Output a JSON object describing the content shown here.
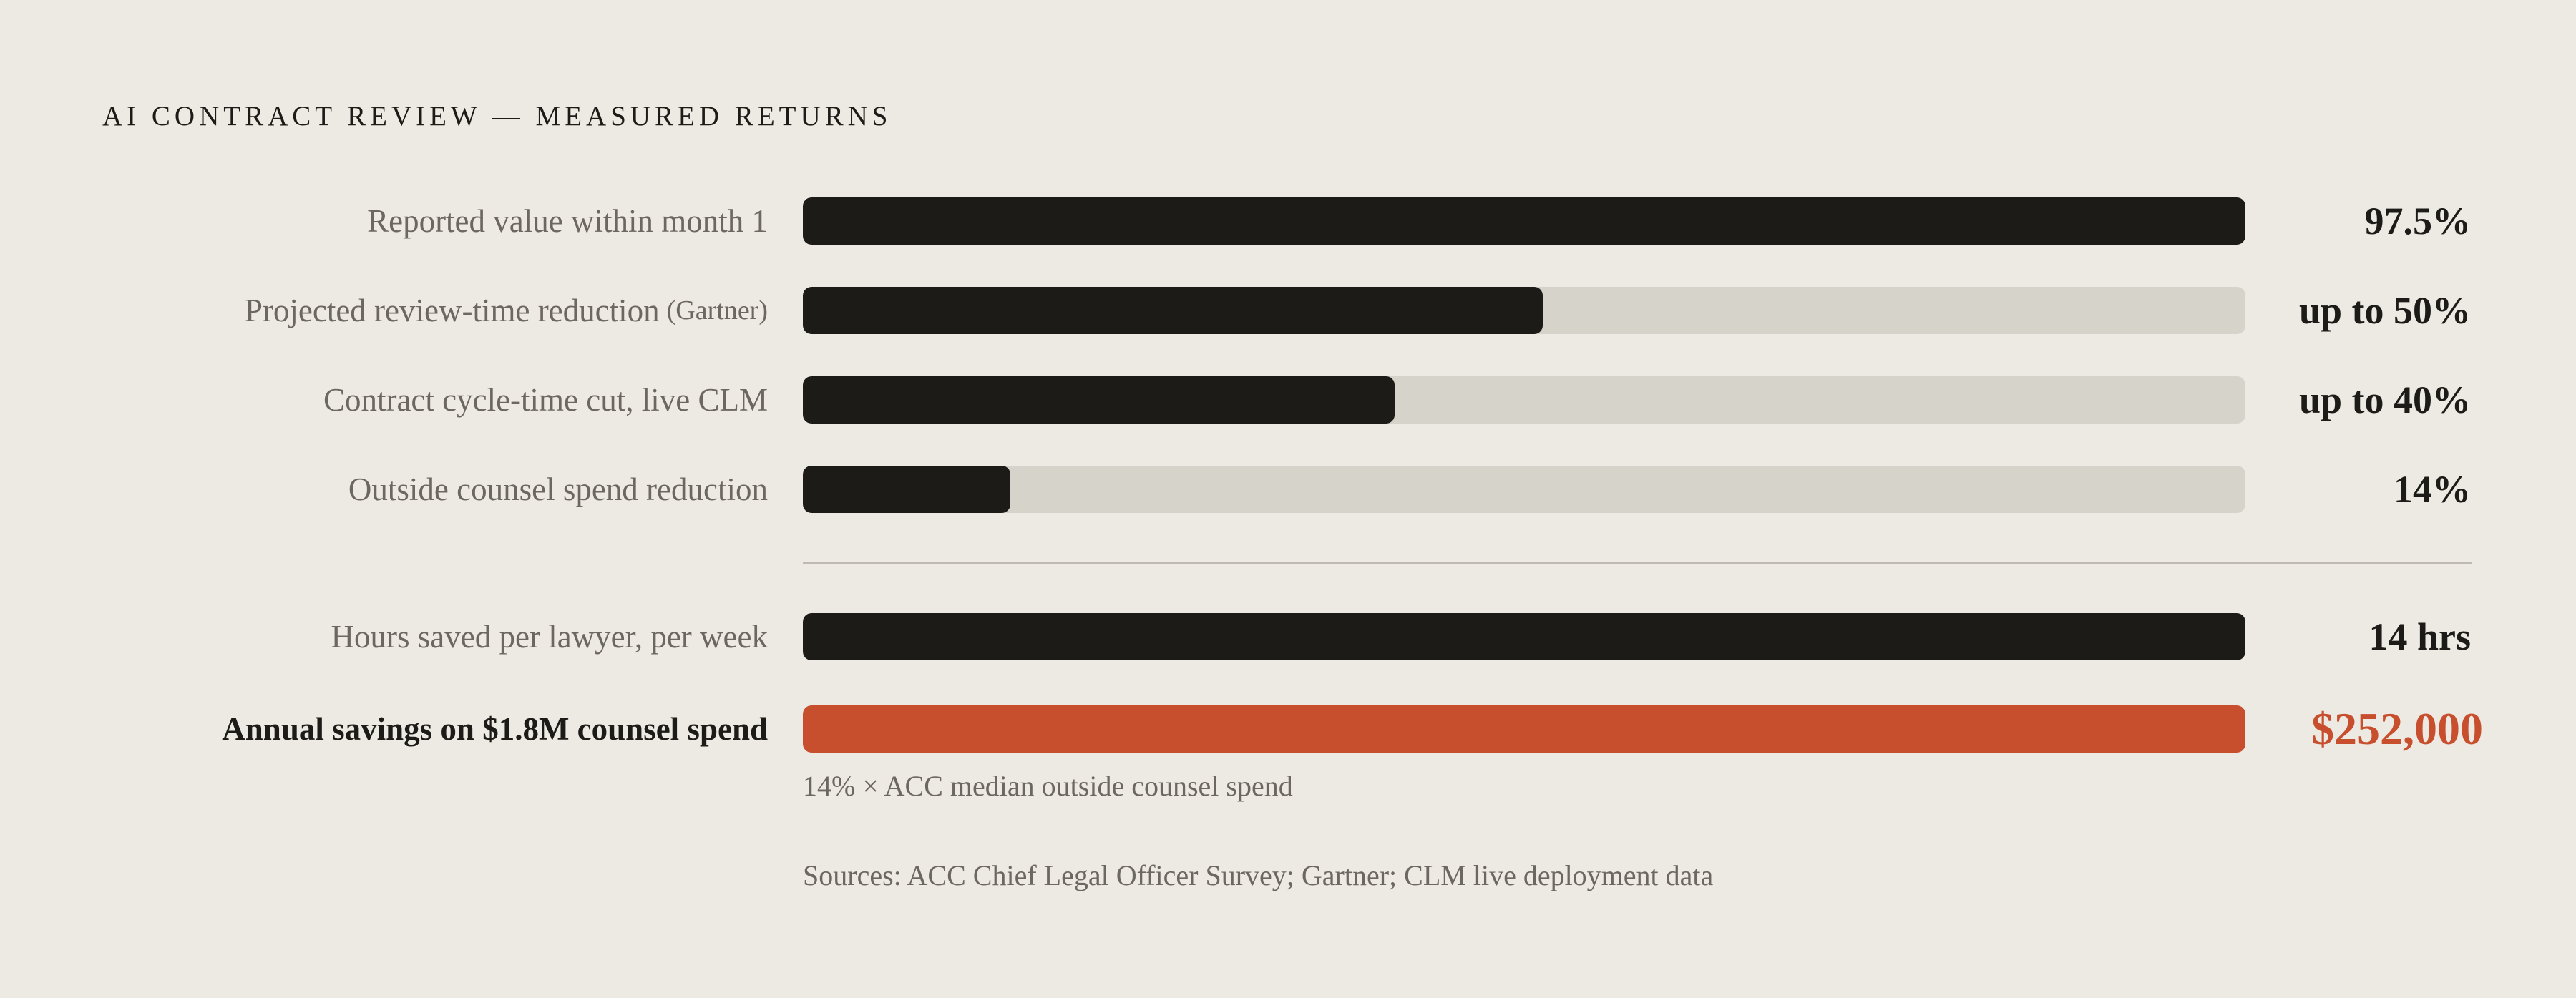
{
  "chart_data": {
    "type": "bar",
    "orientation": "horizontal",
    "title": "AI CONTRACT REVIEW — MEASURED RETURNS",
    "groups": [
      {
        "items": [
          {
            "label": "Reported value within month 1",
            "value": 97.5,
            "fill_fraction": 1.0,
            "display": "97.5%"
          },
          {
            "label": "Projected review-time reduction",
            "label_suffix": "(Gartner)",
            "value": 50,
            "fill_fraction": 0.513,
            "display": "up to 50%"
          },
          {
            "label": "Contract cycle-time cut, live CLM",
            "value": 40,
            "fill_fraction": 0.41,
            "display": "up to 40%"
          },
          {
            "label": "Outside counsel spend reduction",
            "value": 14,
            "fill_fraction": 0.144,
            "display": "14%"
          }
        ]
      },
      {
        "items": [
          {
            "label": "Hours saved per lawyer, per week",
            "value": 14,
            "fill_fraction": 1.0,
            "display": "14 hrs"
          },
          {
            "label": "Annual savings on $1.8M counsel spend",
            "value": 252000,
            "fill_fraction": 1.0,
            "display": "$252,000",
            "highlight": true
          }
        ]
      }
    ],
    "note": "14% × ACC median outside counsel spend",
    "sources": "Sources: ACC Chief Legal Officer Survey; Gartner; CLM live deployment data",
    "colors": {
      "bar": "#1d1b18",
      "track": "#d6d3cb",
      "accent": "#c84f2e",
      "background": "#edeae3"
    }
  }
}
